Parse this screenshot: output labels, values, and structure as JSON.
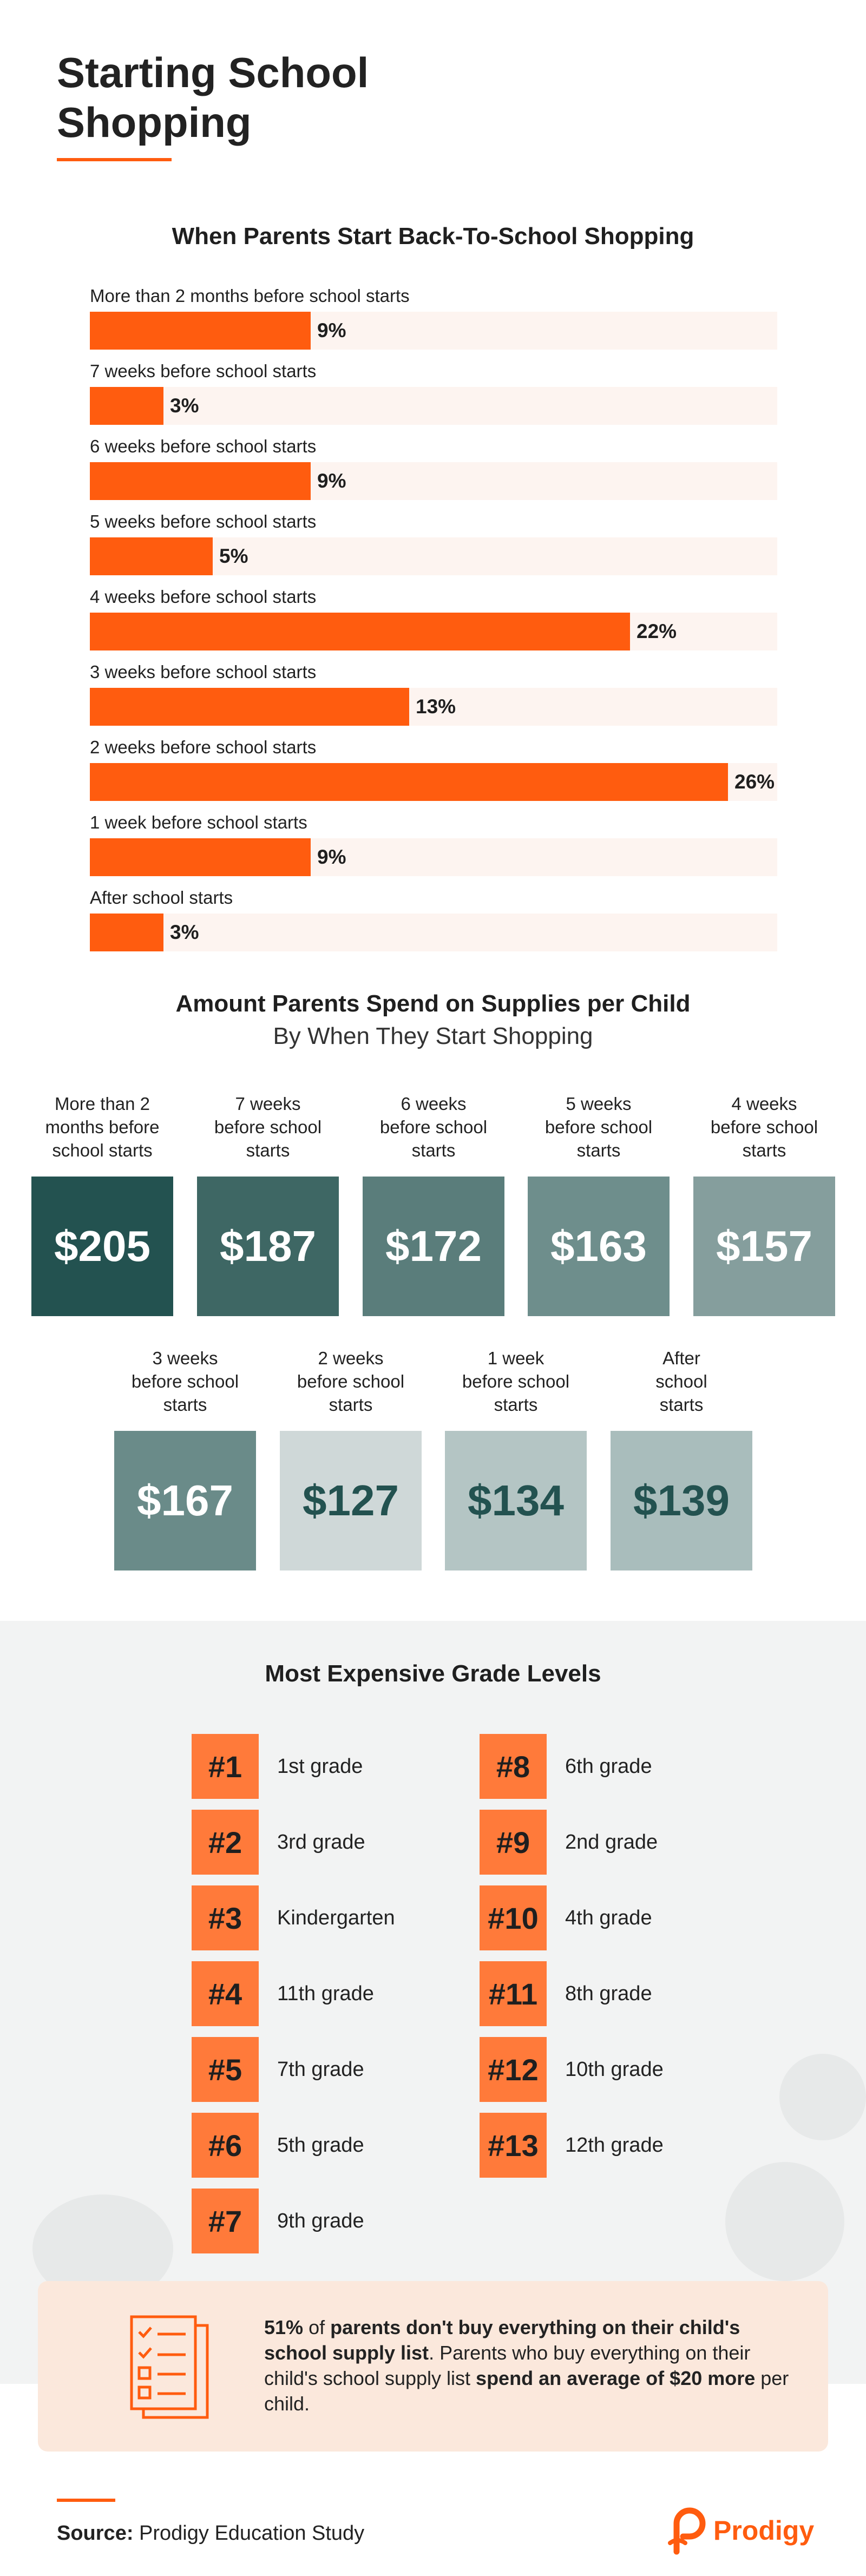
{
  "page": {
    "title_line1": "Starting School",
    "title_line2": "Shopping"
  },
  "bar_section": {
    "title": "When Parents Start Back-To-School Shopping"
  },
  "spend_section": {
    "title": "Amount Parents Spend on Supplies per Child",
    "subtitle": "By When They Start Shopping"
  },
  "chart_data": [
    {
      "type": "bar",
      "orientation": "horizontal",
      "title": "When Parents Start Back-To-School Shopping",
      "categories": [
        "More than 2 months before school starts",
        "7 weeks before school starts",
        "6 weeks before school starts",
        "5 weeks before school starts",
        "4 weeks before school starts",
        "3 weeks before school starts",
        "2 weeks before school starts",
        "1 week before school starts",
        "After school starts"
      ],
      "values": [
        9,
        3,
        9,
        5,
        22,
        13,
        26,
        9,
        3
      ],
      "value_labels": [
        "9%",
        "3%",
        "9%",
        "5%",
        "22%",
        "13%",
        "26%",
        "9%",
        "3%"
      ],
      "xlim": [
        0,
        28
      ],
      "colors": {
        "bar": "#ff5c0f",
        "track": "#fdf4f0"
      }
    },
    {
      "type": "table",
      "title": "Amount Parents Spend on Supplies per Child",
      "subtitle": "By When They Start Shopping",
      "categories": [
        "More than 2 months before school starts",
        "7 weeks before school starts",
        "6 weeks before school starts",
        "5 weeks before school starts",
        "4 weeks before school starts",
        "3 weeks before school starts",
        "2 weeks before school starts",
        "1 week before school starts",
        "After school starts"
      ],
      "caption_lines": [
        [
          "More than 2",
          "months before",
          "school starts"
        ],
        [
          "7 weeks",
          "before school",
          "starts"
        ],
        [
          "6 weeks",
          "before school",
          "starts"
        ],
        [
          "5 weeks",
          "before school",
          "starts"
        ],
        [
          "4 weeks",
          "before school",
          "starts"
        ],
        [
          "3 weeks",
          "before school",
          "starts"
        ],
        [
          "2 weeks",
          "before school",
          "starts"
        ],
        [
          "1 week",
          "before school",
          "starts"
        ],
        [
          "After",
          "school",
          "starts"
        ]
      ],
      "values": [
        205,
        187,
        172,
        163,
        157,
        167,
        127,
        134,
        139
      ],
      "value_labels": [
        "$205",
        "$187",
        "$172",
        "$163",
        "$157",
        "$167",
        "$127",
        "$134",
        "$139"
      ],
      "tile_colors": [
        "#235250",
        "#3e6764",
        "#5a7d7b",
        "#6e8e8c",
        "#859e9d",
        "#6a8b89",
        "#cfd8d8",
        "#b4c5c4",
        "#a9bdbc"
      ],
      "text_colors": [
        "#ffffff",
        "#ffffff",
        "#ffffff",
        "#ffffff",
        "#ffffff",
        "#ffffff",
        "#235250",
        "#235250",
        "#235250"
      ]
    }
  ],
  "grades": {
    "title": "Most Expensive Grade Levels",
    "items": [
      {
        "rank": "#1",
        "grade": "1st grade"
      },
      {
        "rank": "#2",
        "grade": "3rd grade"
      },
      {
        "rank": "#3",
        "grade": "Kindergarten"
      },
      {
        "rank": "#4",
        "grade": "11th grade"
      },
      {
        "rank": "#5",
        "grade": "7th grade"
      },
      {
        "rank": "#6",
        "grade": "5th grade"
      },
      {
        "rank": "#7",
        "grade": "9th grade"
      },
      {
        "rank": "#8",
        "grade": "6th grade"
      },
      {
        "rank": "#9",
        "grade": "2nd grade"
      },
      {
        "rank": "#10",
        "grade": "4th grade"
      },
      {
        "rank": "#11",
        "grade": "8th grade"
      },
      {
        "rank": "#12",
        "grade": "10th grade"
      },
      {
        "rank": "#13",
        "grade": "12th grade"
      }
    ]
  },
  "callout": {
    "pct": "51%",
    "t1": " of ",
    "b1": "parents don't buy everything on their child's school supply list",
    "t2": ". Parents who buy everything on their child's school supply list ",
    "b2": "spend an average of $20 more",
    "t3": " per child."
  },
  "footer": {
    "source_label": "Source:",
    "source_text": " Prodigy Education Study",
    "brand": "Prodigy"
  },
  "colors": {
    "accent": "#ff5c0f",
    "grade_tile": "#ff7a3a",
    "callout_bg": "#fbe8dc",
    "grades_bg": "#f2f3f3"
  }
}
